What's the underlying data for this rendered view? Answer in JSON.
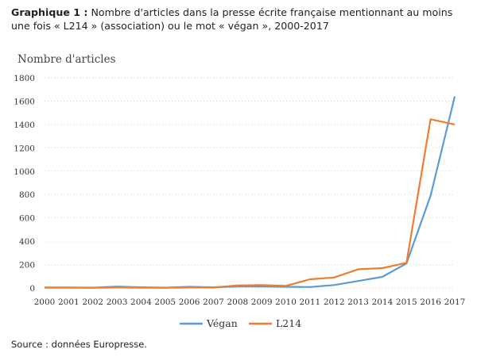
{
  "caption": {
    "label": "Graphique 1 :",
    "text": "Nombre d'articles dans la presse écrite française mentionnant au moins une fois « L214 » (association) ou le mot « végan », 2000-2017"
  },
  "source": "Source : données Europresse.",
  "chart_data": {
    "type": "line",
    "title": "",
    "ylabel": "Nombre d'articles",
    "xlabel": "",
    "x": [
      "2000",
      "2001",
      "2002",
      "2003",
      "2004",
      "2005",
      "2006",
      "2007",
      "2008",
      "2009",
      "2010",
      "2011",
      "2012",
      "2013",
      "2014",
      "2015",
      "2016",
      "2017"
    ],
    "ylim": [
      0,
      1800
    ],
    "yticks": [
      "0",
      "200",
      "400",
      "600",
      "800",
      "1000",
      "1200",
      "1400",
      "1600",
      "1800"
    ],
    "grid": "horizontal",
    "legend_position": "bottom",
    "series": [
      {
        "name": "Végan",
        "color": "#5b9bd5",
        "values": [
          5,
          4,
          3,
          12,
          6,
          3,
          10,
          6,
          12,
          13,
          10,
          8,
          25,
          60,
          95,
          210,
          790,
          1640
        ]
      },
      {
        "name": "L214",
        "color": "#ed7d31",
        "values": [
          3,
          3,
          2,
          4,
          2,
          2,
          4,
          4,
          22,
          25,
          18,
          75,
          90,
          160,
          170,
          215,
          1445,
          1400
        ]
      }
    ]
  }
}
